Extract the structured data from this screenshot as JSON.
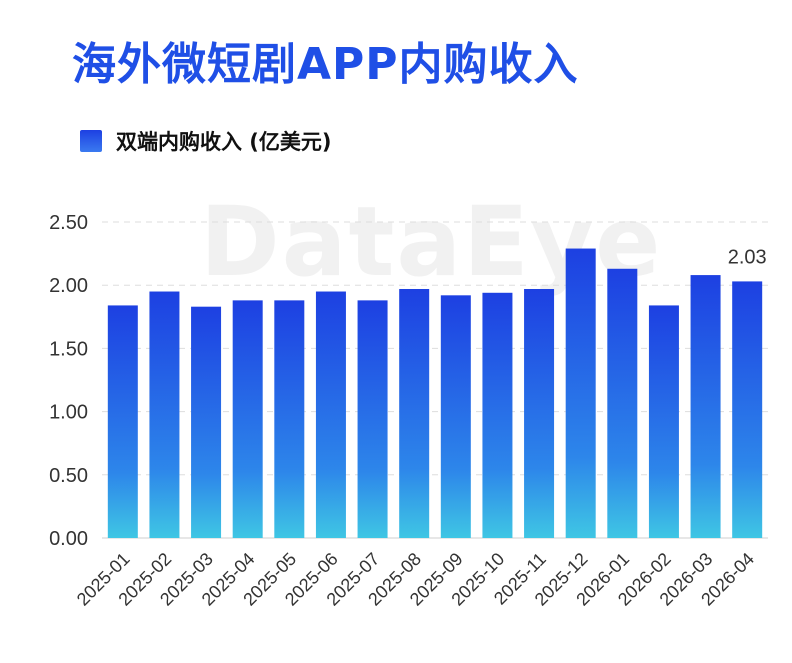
{
  "header": {
    "title": "海外微短剧APP内购收入"
  },
  "watermark": "DataEye",
  "colors": {
    "bar_top": "#1d40e2",
    "bar_bottom": "#3fc6e4",
    "title": "#1f4fe6",
    "grid": "#dddddd"
  },
  "chart_data": {
    "type": "bar",
    "title": "海外微短剧APP内购收入",
    "categories": [
      "2025-01",
      "2025-02",
      "2025-03",
      "2025-04",
      "2025-05",
      "2025-06",
      "2025-07",
      "2025-08",
      "2025-09",
      "2025-10",
      "2025-11",
      "2025-12",
      "2026-01",
      "2026-02",
      "2026-03",
      "2026-04"
    ],
    "series": [
      {
        "name": "双端内购收入 (亿美元)",
        "values": [
          1.84,
          1.95,
          1.83,
          1.88,
          1.88,
          1.95,
          1.88,
          1.97,
          1.92,
          1.94,
          1.97,
          2.29,
          2.13,
          1.84,
          2.08,
          2.03
        ]
      }
    ],
    "data_labels": [
      {
        "category": "2026-04",
        "text": "2.03"
      }
    ],
    "yticks": [
      "0.00",
      "0.50",
      "1.00",
      "1.50",
      "2.00",
      "2.50"
    ],
    "ylim": [
      0,
      2.5
    ],
    "grid": true,
    "legend_position": "top-left"
  }
}
